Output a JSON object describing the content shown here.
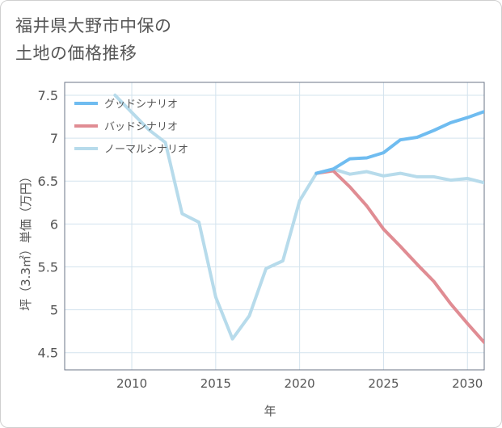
{
  "title_line1": "福井県大野市中保の",
  "title_line2": "土地の価格推移",
  "chart_data": {
    "type": "line",
    "title": "福井県大野市中保の土地の価格推移",
    "xlabel": "年",
    "ylabel": "坪（3.3㎡）単価（万円）",
    "xlim": [
      2006,
      2031
    ],
    "ylim": [
      4.3,
      7.65
    ],
    "x_ticks": [
      2010,
      2015,
      2020,
      2025,
      2030
    ],
    "x_tick_labels": [
      "2010",
      "2015",
      "2020",
      "2025",
      "2030"
    ],
    "y_ticks": [
      4.5,
      5,
      5.5,
      6,
      6.5,
      7,
      7.5
    ],
    "y_tick_labels": [
      "4.5",
      "5",
      "5.5",
      "6",
      "6.5",
      "7",
      "7.5"
    ],
    "grid": true,
    "legend_position": "top-left",
    "series": [
      {
        "name": "グッドシナリオ",
        "color": "#6fbcf0",
        "x": [
          2021,
          2022,
          2023,
          2024,
          2025,
          2026,
          2027,
          2028,
          2029,
          2030,
          2031
        ],
        "values": [
          6.59,
          6.64,
          6.76,
          6.77,
          6.83,
          6.98,
          7.01,
          7.09,
          7.18,
          7.24,
          7.31
        ]
      },
      {
        "name": "バッドシナリオ",
        "color": "#e08c93",
        "x": [
          2021,
          2022,
          2023,
          2024,
          2025,
          2026,
          2027,
          2028,
          2029,
          2030,
          2031
        ],
        "values": [
          6.59,
          6.62,
          6.43,
          6.21,
          5.94,
          5.74,
          5.53,
          5.33,
          5.07,
          4.84,
          4.62
        ]
      },
      {
        "name": "ノーマルシナリオ",
        "color": "#b7dbeb",
        "x": [
          2009,
          2010,
          2011,
          2012,
          2013,
          2014,
          2015,
          2016,
          2017,
          2018,
          2019,
          2020,
          2021,
          2022,
          2023,
          2024,
          2025,
          2026,
          2027,
          2028,
          2029,
          2030,
          2031
        ],
        "values": [
          7.5,
          7.3,
          7.1,
          6.95,
          6.12,
          6.02,
          5.15,
          4.66,
          4.93,
          5.48,
          5.57,
          6.27,
          6.59,
          6.64,
          6.58,
          6.61,
          6.56,
          6.59,
          6.55,
          6.55,
          6.51,
          6.53,
          6.48
        ]
      }
    ]
  }
}
